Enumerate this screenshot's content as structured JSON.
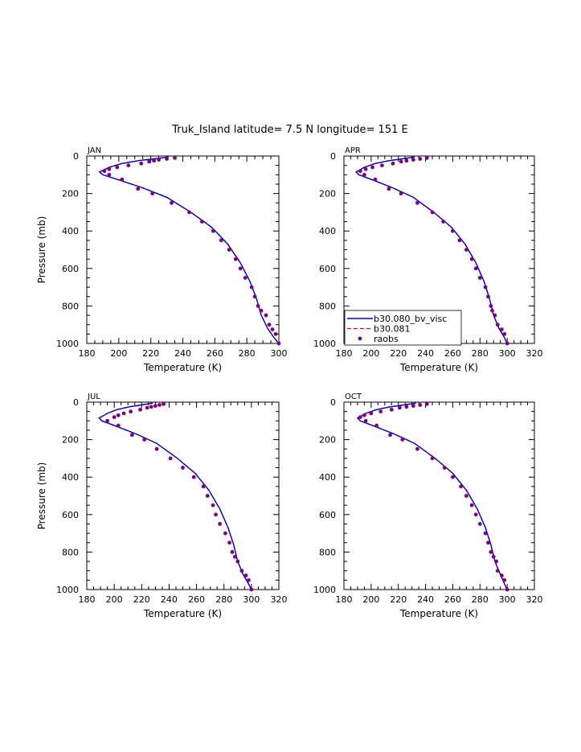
{
  "figure": {
    "title": "Truk_Island  latitude= 7.5 N longitude= 151 E",
    "colors": {
      "model_a": "#0000cc",
      "model_b": "#ff0000",
      "obs": "#800080"
    }
  },
  "legend": {
    "entries": [
      {
        "label": "b30.080_bv_visc",
        "style": "solid-line"
      },
      {
        "label": "b30.081",
        "style": "dashed-line"
      },
      {
        "label": "raobs",
        "style": "dot"
      }
    ],
    "placement": "bottom-left of APR panel"
  },
  "chart_data": [
    {
      "type": "line",
      "panel": "JAN",
      "xlabel": "Temperature (K)",
      "ylabel": "Pressure (mb)",
      "xlim": [
        180,
        300
      ],
      "ylim": [
        1000,
        0
      ],
      "xticks": [
        180,
        200,
        220,
        240,
        260,
        280,
        300
      ],
      "yticks": [
        0,
        200,
        400,
        600,
        800,
        1000
      ],
      "series": [
        {
          "name": "b30.080_bv_visc",
          "temperature": [
            231,
            222,
            212,
            202,
            194,
            188,
            190,
            201,
            215,
            230,
            245,
            258,
            268,
            276,
            282,
            286,
            289,
            293,
            297,
            300
          ],
          "pressure": [
            5,
            15,
            25,
            40,
            60,
            85,
            100,
            130,
            170,
            220,
            300,
            380,
            470,
            570,
            670,
            760,
            850,
            920,
            970,
            1000
          ]
        },
        {
          "name": "b30.081",
          "temperature": [
            231,
            222,
            212,
            202,
            194,
            188,
            190,
            201,
            215,
            230,
            245,
            258,
            268,
            276,
            282,
            286,
            289,
            293,
            297,
            300
          ],
          "pressure": [
            5,
            15,
            25,
            40,
            60,
            85,
            100,
            130,
            170,
            220,
            300,
            380,
            470,
            570,
            670,
            760,
            850,
            920,
            970,
            1000
          ]
        },
        {
          "name": "raobs",
          "temperature": [
            235,
            230,
            225,
            222,
            219,
            214,
            206,
            199,
            194,
            191,
            194,
            202,
            212,
            221,
            233,
            244,
            252,
            259,
            264,
            269,
            273,
            276,
            279,
            283,
            285,
            287,
            289,
            292,
            294,
            296,
            298,
            300
          ],
          "pressure": [
            10,
            15,
            20,
            25,
            30,
            40,
            50,
            60,
            70,
            80,
            100,
            125,
            175,
            200,
            250,
            300,
            350,
            400,
            450,
            500,
            550,
            600,
            650,
            700,
            750,
            800,
            825,
            850,
            900,
            925,
            950,
            1000
          ]
        }
      ]
    },
    {
      "type": "line",
      "panel": "APR",
      "xlabel": "Temperature (K)",
      "ylabel": "",
      "xlim": [
        180,
        320
      ],
      "ylim": [
        1000,
        0
      ],
      "xticks": [
        180,
        200,
        220,
        240,
        260,
        280,
        300,
        320
      ],
      "yticks": [
        0,
        200,
        400,
        600,
        800,
        1000
      ],
      "series": [
        {
          "name": "b30.080_bv_visc",
          "temperature": [
            232,
            223,
            213,
            203,
            195,
            189,
            191,
            202,
            216,
            231,
            246,
            259,
            269,
            277,
            283,
            287,
            290,
            294,
            298,
            300
          ],
          "pressure": [
            5,
            15,
            25,
            40,
            60,
            85,
            100,
            130,
            170,
            220,
            300,
            380,
            470,
            570,
            670,
            760,
            850,
            920,
            970,
            1000
          ]
        },
        {
          "name": "b30.081",
          "temperature": [
            232,
            223,
            213,
            203,
            195,
            189,
            191,
            202,
            216,
            231,
            246,
            259,
            269,
            277,
            283,
            287,
            290,
            294,
            298,
            300
          ],
          "pressure": [
            5,
            15,
            25,
            40,
            60,
            85,
            100,
            130,
            170,
            220,
            300,
            380,
            470,
            570,
            670,
            760,
            850,
            920,
            970,
            1000
          ]
        },
        {
          "name": "raobs",
          "temperature": [
            241,
            236,
            231,
            226,
            222,
            216,
            208,
            201,
            196,
            192,
            195,
            203,
            213,
            222,
            234,
            245,
            253,
            260,
            265,
            270,
            274,
            277,
            280,
            284,
            286,
            288,
            289,
            291,
            293,
            296,
            298,
            300
          ],
          "pressure": [
            10,
            15,
            20,
            25,
            30,
            40,
            50,
            60,
            70,
            80,
            100,
            125,
            175,
            200,
            250,
            300,
            350,
            400,
            450,
            500,
            550,
            600,
            650,
            700,
            750,
            800,
            825,
            850,
            900,
            925,
            950,
            1000
          ]
        }
      ]
    },
    {
      "type": "line",
      "panel": "JUL",
      "xlabel": "Temperature (K)",
      "ylabel": "Pressure (mb)",
      "xlim": [
        180,
        320
      ],
      "ylim": [
        1000,
        0
      ],
      "xticks": [
        180,
        200,
        220,
        240,
        260,
        280,
        300,
        320
      ],
      "yticks": [
        0,
        200,
        400,
        600,
        800,
        1000
      ],
      "series": [
        {
          "name": "b30.080_bv_visc",
          "temperature": [
            228,
            220,
            211,
            202,
            195,
            189,
            191,
            202,
            216,
            231,
            246,
            259,
            269,
            277,
            283,
            287,
            290,
            294,
            298,
            300
          ],
          "pressure": [
            5,
            15,
            25,
            40,
            60,
            85,
            100,
            130,
            170,
            220,
            300,
            380,
            470,
            570,
            670,
            760,
            850,
            920,
            970,
            1000
          ]
        },
        {
          "name": "b30.081",
          "temperature": [
            228,
            220,
            211,
            202,
            195,
            189,
            191,
            202,
            216,
            231,
            246,
            259,
            269,
            277,
            283,
            287,
            290,
            294,
            298,
            300
          ],
          "pressure": [
            5,
            15,
            25,
            40,
            60,
            85,
            100,
            130,
            170,
            220,
            300,
            380,
            470,
            570,
            670,
            760,
            850,
            920,
            970,
            1000
          ]
        },
        {
          "name": "raobs",
          "temperature": [
            236,
            233,
            230,
            227,
            224,
            219,
            212,
            207,
            203,
            200,
            195,
            203,
            213,
            222,
            231,
            241,
            250,
            258,
            265,
            268,
            272,
            274,
            277,
            281,
            284,
            286,
            288,
            290,
            293,
            296,
            298,
            300
          ],
          "pressure": [
            10,
            15,
            20,
            25,
            30,
            40,
            50,
            60,
            70,
            80,
            100,
            125,
            175,
            200,
            250,
            300,
            350,
            400,
            450,
            500,
            550,
            600,
            650,
            700,
            750,
            800,
            825,
            850,
            900,
            925,
            950,
            1000
          ]
        }
      ]
    },
    {
      "type": "line",
      "panel": "OCT",
      "xlabel": "Temperature (K)",
      "ylabel": "",
      "xlim": [
        180,
        320
      ],
      "ylim": [
        1000,
        0
      ],
      "xticks": [
        180,
        200,
        220,
        240,
        260,
        280,
        300,
        320
      ],
      "yticks": [
        0,
        200,
        400,
        600,
        800,
        1000
      ],
      "series": [
        {
          "name": "b30.080_bv_visc",
          "temperature": [
            233,
            224,
            214,
            204,
            196,
            190,
            192,
            203,
            217,
            232,
            247,
            260,
            270,
            278,
            284,
            288,
            291,
            295,
            298,
            300
          ],
          "pressure": [
            5,
            15,
            25,
            40,
            60,
            85,
            100,
            130,
            170,
            220,
            300,
            380,
            470,
            570,
            670,
            760,
            850,
            920,
            970,
            1000
          ]
        },
        {
          "name": "b30.081",
          "temperature": [
            233,
            224,
            214,
            204,
            196,
            190,
            192,
            203,
            217,
            232,
            247,
            260,
            270,
            278,
            284,
            288,
            291,
            295,
            298,
            300
          ],
          "pressure": [
            5,
            15,
            25,
            40,
            60,
            85,
            100,
            130,
            170,
            220,
            300,
            380,
            470,
            570,
            670,
            760,
            850,
            920,
            970,
            1000
          ]
        },
        {
          "name": "raobs",
          "temperature": [
            241,
            236,
            231,
            226,
            221,
            215,
            207,
            200,
            195,
            192,
            196,
            204,
            214,
            223,
            234,
            245,
            254,
            260,
            266,
            270,
            274,
            277,
            280,
            284,
            286,
            288,
            290,
            292,
            293,
            296,
            298,
            300
          ],
          "pressure": [
            10,
            15,
            20,
            25,
            30,
            40,
            50,
            60,
            70,
            80,
            100,
            125,
            175,
            200,
            250,
            300,
            350,
            400,
            450,
            500,
            550,
            600,
            650,
            700,
            750,
            800,
            825,
            850,
            900,
            925,
            950,
            1000
          ]
        }
      ]
    }
  ]
}
